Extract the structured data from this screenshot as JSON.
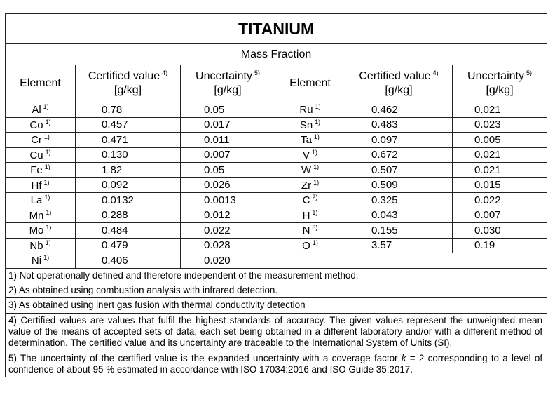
{
  "title": "TITANIUM",
  "subtitle": "Mass Fraction",
  "headers": {
    "element": "Element",
    "certified": "Certified value",
    "certified_note": "4)",
    "uncertainty": "Uncertainty",
    "uncertainty_note": "5)",
    "unit": "[g/kg]"
  },
  "left_rows": [
    {
      "element": "Al",
      "note": "1)",
      "certified": "0.78",
      "uncertainty": "0.05"
    },
    {
      "element": "Co",
      "note": "1)",
      "certified": "0.457",
      "uncertainty": "0.017"
    },
    {
      "element": "Cr",
      "note": "1)",
      "certified": "0.471",
      "uncertainty": "0.011"
    },
    {
      "element": "Cu",
      "note": "1)",
      "certified": "0.130",
      "uncertainty": "0.007"
    },
    {
      "element": "Fe",
      "note": "1)",
      "certified": "1.82",
      "uncertainty": "0.05"
    },
    {
      "element": "Hf",
      "note": "1)",
      "certified": "0.092",
      "uncertainty": "0.026"
    },
    {
      "element": "La",
      "note": "1)",
      "certified": "0.0132",
      "uncertainty": "0.0013"
    },
    {
      "element": "Mn",
      "note": "1)",
      "certified": "0.288",
      "uncertainty": "0.012"
    },
    {
      "element": "Mo",
      "note": "1)",
      "certified": "0.484",
      "uncertainty": "0.022"
    },
    {
      "element": "Nb",
      "note": "1)",
      "certified": "0.479",
      "uncertainty": "0.028"
    },
    {
      "element": "Ni",
      "note": "1)",
      "certified": "0.406",
      "uncertainty": "0.020"
    }
  ],
  "right_rows": [
    {
      "element": "Ru",
      "note": "1)",
      "certified": "0.462",
      "uncertainty": "0.021"
    },
    {
      "element": "Sn",
      "note": "1)",
      "certified": "0.483",
      "uncertainty": "0.023"
    },
    {
      "element": "Ta",
      "note": "1)",
      "certified": "0.097",
      "uncertainty": "0.005"
    },
    {
      "element": "V",
      "note": "1)",
      "certified": "0.672",
      "uncertainty": "0.021"
    },
    {
      "element": "W",
      "note": "1)",
      "certified": "0.507",
      "uncertainty": "0.021"
    },
    {
      "element": "Zr",
      "note": "1)",
      "certified": "0.509",
      "uncertainty": "0.015"
    },
    {
      "element": "C",
      "note": "2)",
      "certified": "0.325",
      "uncertainty": "0.022"
    },
    {
      "element": "H",
      "note": "1)",
      "certified": "0.043",
      "uncertainty": "0.007"
    },
    {
      "element": "N",
      "note": "3)",
      "certified": "0.155",
      "uncertainty": "0.030"
    },
    {
      "element": "O",
      "note": "1)",
      "certified": "3.57",
      "uncertainty": "0.19"
    }
  ],
  "footnotes": [
    {
      "text": "1) Not operationally defined and therefore independent of the measurement method."
    },
    {
      "text": "2) As obtained using combustion analysis with infrared detection."
    },
    {
      "text": "3) As obtained using inert gas fusion with thermal conductivity detection"
    },
    {
      "text": "4) Certified values are values that fulfil the highest standards of accuracy. The given values represent the unweighted mean value of the means of accepted sets of data, each set being obtained in a different laboratory and/or with a different method of determination. The certified value and its uncertainty are traceable to the International System of Units (SI)."
    },
    {
      "text": "5) The uncertainty of the certified value is the expanded uncertainty with a coverage factor ",
      "italic": "k",
      "after": " = 2 corresponding to a level of confidence of about 95 % estimated in accordance with ISO 17034:2016 and ISO Guide 35:2017."
    }
  ]
}
